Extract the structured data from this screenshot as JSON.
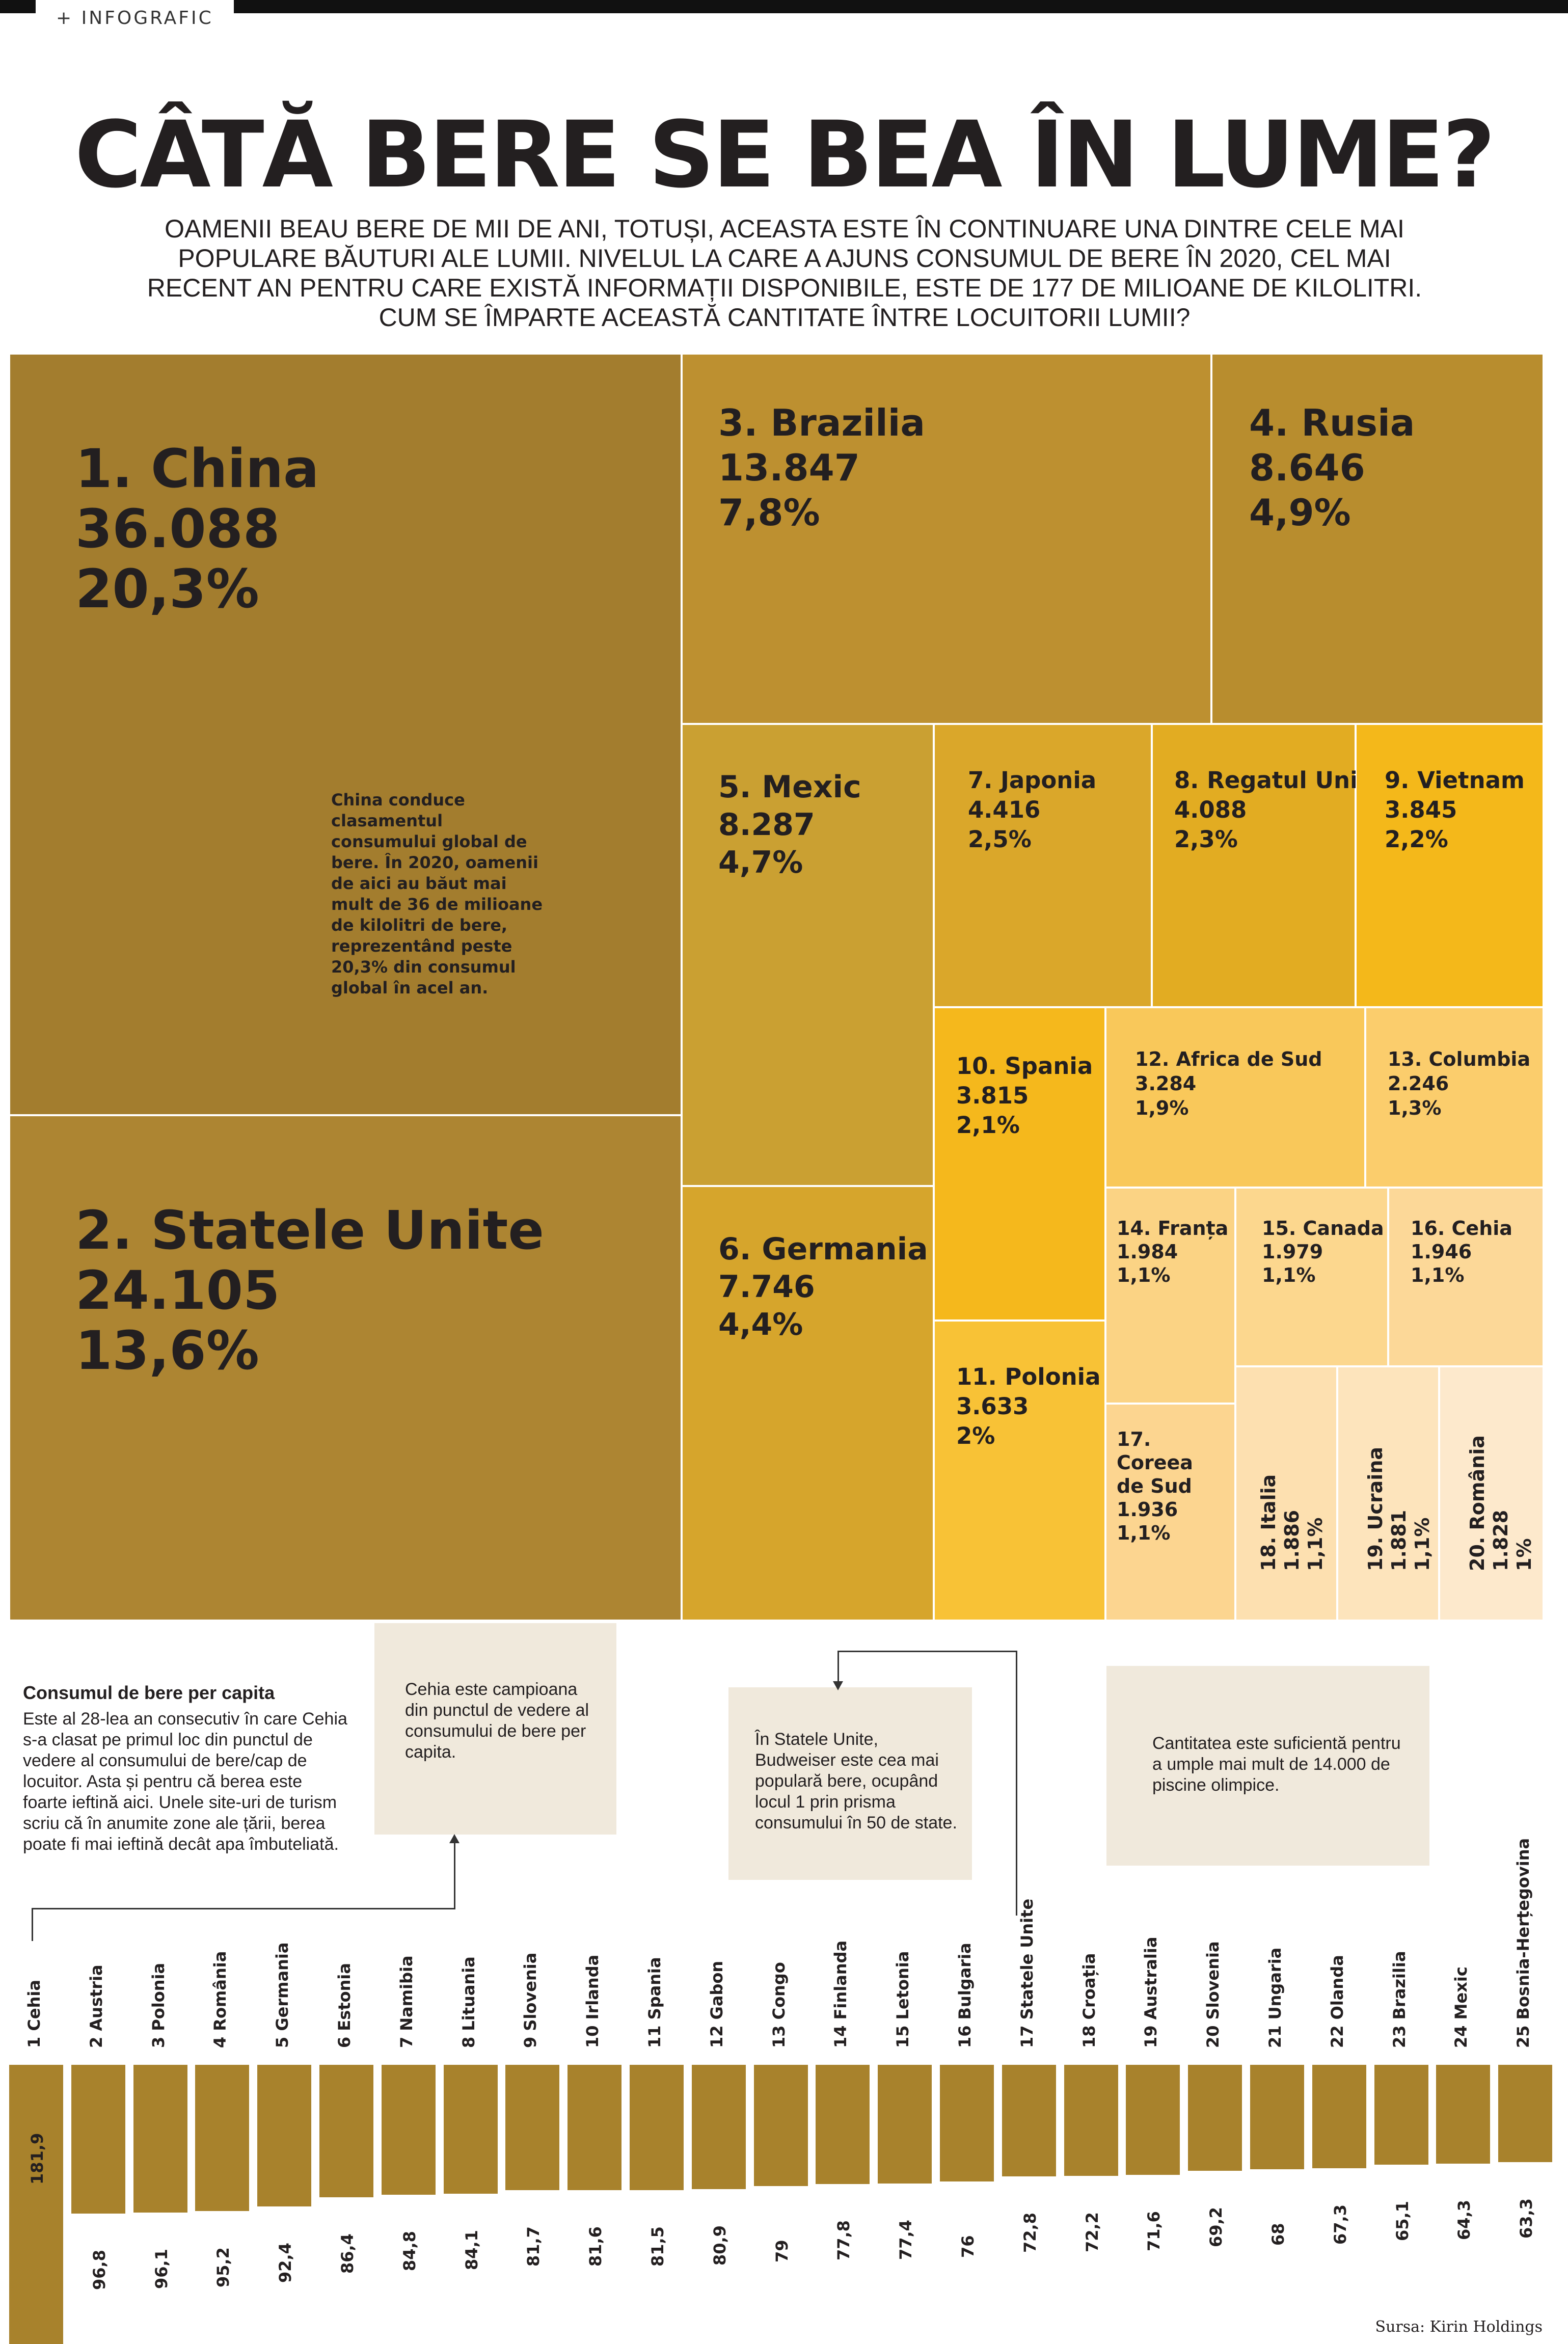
{
  "header": {
    "tag": "+ INFOGRAFIC",
    "title": "CÂTĂ BERE SE BEA ÎN LUME?",
    "subtitle": "OAMENII BEAU BERE DE MII DE ANI, TOTUȘI, ACEASTA ESTE ÎN CONTINUARE UNA DINTRE CELE MAI POPULARE BĂUTURI ALE LUMII. NIVELUL LA CARE A AJUNS CONSUMUL DE BERE ÎN 2020, CEL MAI RECENT AN PENTRU CARE EXISTĂ INFORMAȚII DISPONIBILE, ESTE DE 177 DE MILIOANE DE KILOLITRI. CUM SE ÎMPARTE ACEASTĂ CANTITATE ÎNTRE LOCUITORII LUMII?"
  },
  "notes": {
    "china": "China conduce clasamentul consumului global de bere. În 2020, oamenii de aici au băut mai mult de 36 de milioane de kilolitri de bere, reprezentând peste 20,3% din consumul global în acel an.",
    "percapita_title": "Consumul de bere per capita",
    "percapita_body": "Este al 28-lea an consecutiv în care Cehia s-a clasat pe primul loc din punctul de vedere al consumului de bere/cap de locuitor. Asta și pentru că berea este foarte ieftină aici. Unele site-uri de turism scriu că în anumite zone ale țării, berea poate fi mai ieftină decât apa îmbuteliată.",
    "cehia_box": "Cehia este campioana din punctul de vedere al consumului de bere per capita.",
    "usa_box": "În Statele Unite, Budweiser este cea mai populară bere, ocupând locul 1 prin prisma consumului în 50 de state.",
    "pools_box": "Cantitatea este suficientă pentru a umple mai mult de 14.000 de piscine olimpice."
  },
  "source": "Sursa: Kirin Holdings",
  "chart_data": [
    {
      "type": "treemap",
      "tiles": [
        {
          "rank": "1.",
          "country": "China",
          "value": "36.088",
          "share": "20,3%",
          "color": "#a37d2e"
        },
        {
          "rank": "2.",
          "country": "Statele Unite",
          "value": "24.105",
          "share": "13,6%",
          "color": "#ad8532"
        },
        {
          "rank": "3.",
          "country": "Brazilia",
          "value": "13.847",
          "share": "7,8%",
          "color": "#bd9030"
        },
        {
          "rank": "4.",
          "country": "Rusia",
          "value": "8.646",
          "share": "4,9%",
          "color": "#b88d2e"
        },
        {
          "rank": "5.",
          "country": "Mexic",
          "value": "8.287",
          "share": "4,7%",
          "color": "#caa032"
        },
        {
          "rank": "6.",
          "country": "Germania",
          "value": "7.746",
          "share": "4,4%",
          "color": "#d6a52c"
        },
        {
          "rank": "7.",
          "country": "Japonia",
          "value": "4.416",
          "share": "2,5%",
          "color": "#daa72a"
        },
        {
          "rank": "8.",
          "country": "Regatul Unit",
          "value": "4.088",
          "share": "2,3%",
          "color": "#e2ac22"
        },
        {
          "rank": "9.",
          "country": "Vietnam",
          "value": "3.845",
          "share": "2,2%",
          "color": "#f4b81a"
        },
        {
          "rank": "10.",
          "country": "Spania",
          "value": "3.815",
          "share": "2,1%",
          "color": "#f5b81c"
        },
        {
          "rank": "11.",
          "country": "Polonia",
          "value": "3.633",
          "share": "2%",
          "color": "#f8c236"
        },
        {
          "rank": "12.",
          "country": "Africa de Sud",
          "value": "3.284",
          "share": "1,9%",
          "color": "#f9c85a"
        },
        {
          "rank": "13.",
          "country": "Columbia",
          "value": "2.246",
          "share": "1,3%",
          "color": "#fbcd6c"
        },
        {
          "rank": "14.",
          "country": "Franța",
          "value": "1.984",
          "share": "1,1%",
          "color": "#fbd384"
        },
        {
          "rank": "15.",
          "country": "Canada",
          "value": "1.979",
          "share": "1,1%",
          "color": "#fcd78e"
        },
        {
          "rank": "16.",
          "country": "Cehia",
          "value": "1.946",
          "share": "1,1%",
          "color": "#fcd898"
        },
        {
          "rank": "17.",
          "country": "Coreea de Sud",
          "value": "1.936",
          "share": "1,1%",
          "color": "#fcd590"
        },
        {
          "rank": "18.",
          "country": "Italia",
          "value": "1.886",
          "share": "1,1%",
          "color": "#fde0b0"
        },
        {
          "rank": "19.",
          "country": "Ucraina",
          "value": "1.881",
          "share": "1,1%",
          "color": "#fde4bc"
        },
        {
          "rank": "20.",
          "country": "România",
          "value": "1.828",
          "share": "1%",
          "color": "#fde9cc"
        }
      ]
    },
    {
      "type": "bar",
      "categories": [
        "1 Cehia",
        "2 Austria",
        "3 Polonia",
        "4 România",
        "5 Germania",
        "6 Estonia",
        "7 Namibia",
        "8 Lituania",
        "9 Slovenia",
        "10 Irlanda",
        "11 Spania",
        "12 Gabon",
        "13 Congo",
        "14 Finlanda",
        "15 Letonia",
        "16 Bulgaria",
        "17 Statele Unite",
        "18 Croația",
        "19 Australia",
        "20 Slovenia",
        "21 Ungaria",
        "22 Olanda",
        "23 Brazilia",
        "24 Mexic",
        "25 Bosnia-Herțegovina"
      ],
      "values": [
        181.9,
        96.8,
        96.1,
        95.2,
        92.4,
        86.4,
        84.8,
        84.1,
        81.7,
        81.6,
        81.5,
        80.9,
        79,
        77.8,
        77.4,
        76,
        72.8,
        72.2,
        71.6,
        69.2,
        68,
        67.3,
        65.1,
        64.3,
        63.3
      ],
      "value_labels": [
        "181,9",
        "96,8",
        "96,1",
        "95,2",
        "92,4",
        "86,4",
        "84,8",
        "84,1",
        "81,7",
        "81,6",
        "81,5",
        "80,9",
        "79",
        "77,8",
        "77,4",
        "76",
        "72,8",
        "72,2",
        "71,6",
        "69,2",
        "68",
        "67,3",
        "65,1",
        "64,3",
        "63,3"
      ],
      "bar_color": "#a8822c"
    }
  ]
}
